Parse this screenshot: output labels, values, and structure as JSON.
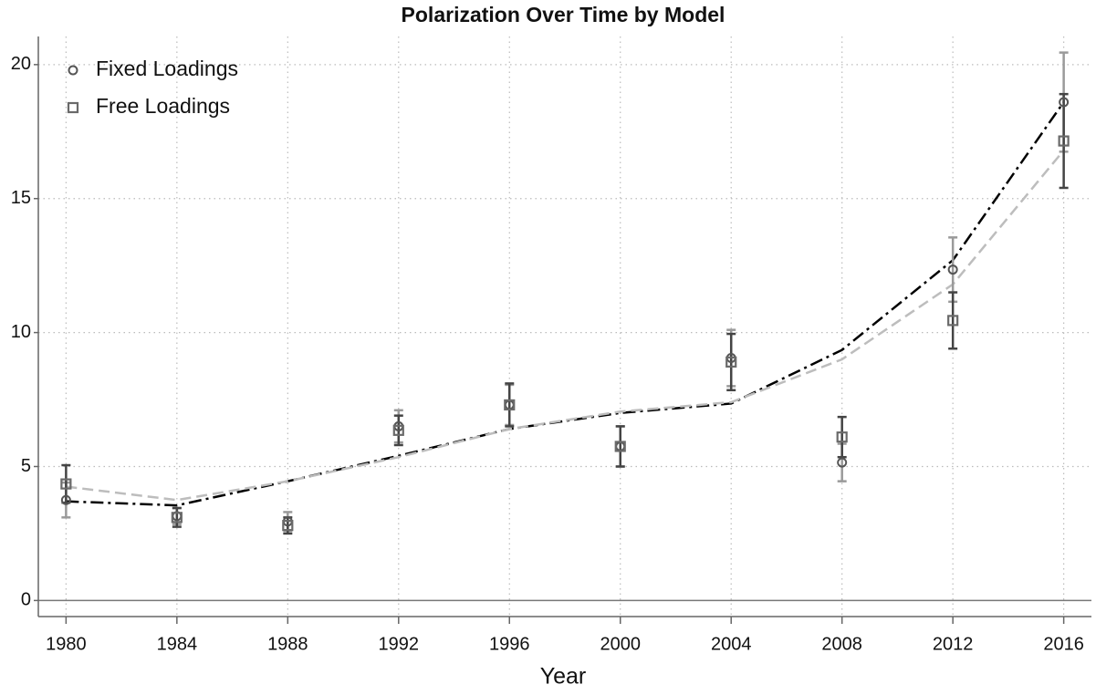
{
  "chart_data": {
    "type": "scatter",
    "title": "Polarization Over Time by Model",
    "x_label": "Year",
    "x": [
      1980,
      1984,
      1988,
      1992,
      1996,
      2000,
      2004,
      2008,
      2012,
      2016
    ],
    "xlim": [
      1979,
      2017
    ],
    "xticks": [
      1980,
      1984,
      1988,
      1992,
      1996,
      2000,
      2004,
      2008,
      2012,
      2016
    ],
    "ylim": [
      -0.6,
      21.05
    ],
    "yticks": [
      0,
      5,
      10,
      15,
      20
    ],
    "grid": true,
    "legend": "upper-left",
    "series": [
      {
        "name": "Fixed Loadings",
        "marker": "circle",
        "color": "#555555",
        "error_color": "#9a9a9a",
        "values": [
          3.75,
          3.15,
          2.95,
          6.5,
          7.3,
          5.75,
          9.05,
          5.15,
          12.35,
          18.6
        ],
        "errors": [
          0.65,
          0.3,
          0.35,
          0.6,
          0.75,
          0.75,
          1.05,
          0.7,
          1.2,
          1.85
        ],
        "fit": [
          3.7,
          3.55,
          4.45,
          5.4,
          6.4,
          7.0,
          7.35,
          9.35,
          12.7,
          18.6
        ],
        "fit_color": "#000000",
        "fit_dash": "14 5 3 5"
      },
      {
        "name": "Free Loadings",
        "marker": "square",
        "color": "#6a6a6a",
        "error_color": "#444444",
        "values": [
          4.35,
          3.1,
          2.8,
          6.35,
          7.3,
          5.75,
          8.9,
          6.1,
          10.45,
          17.15
        ],
        "errors": [
          0.7,
          0.35,
          0.3,
          0.55,
          0.8,
          0.75,
          1.05,
          0.75,
          1.05,
          1.75
        ],
        "fit": [
          4.25,
          3.75,
          4.45,
          5.35,
          6.4,
          7.05,
          7.4,
          9.0,
          11.8,
          16.8
        ],
        "fit_color": "#bdbdbd",
        "fit_dash": "12 6"
      }
    ]
  }
}
